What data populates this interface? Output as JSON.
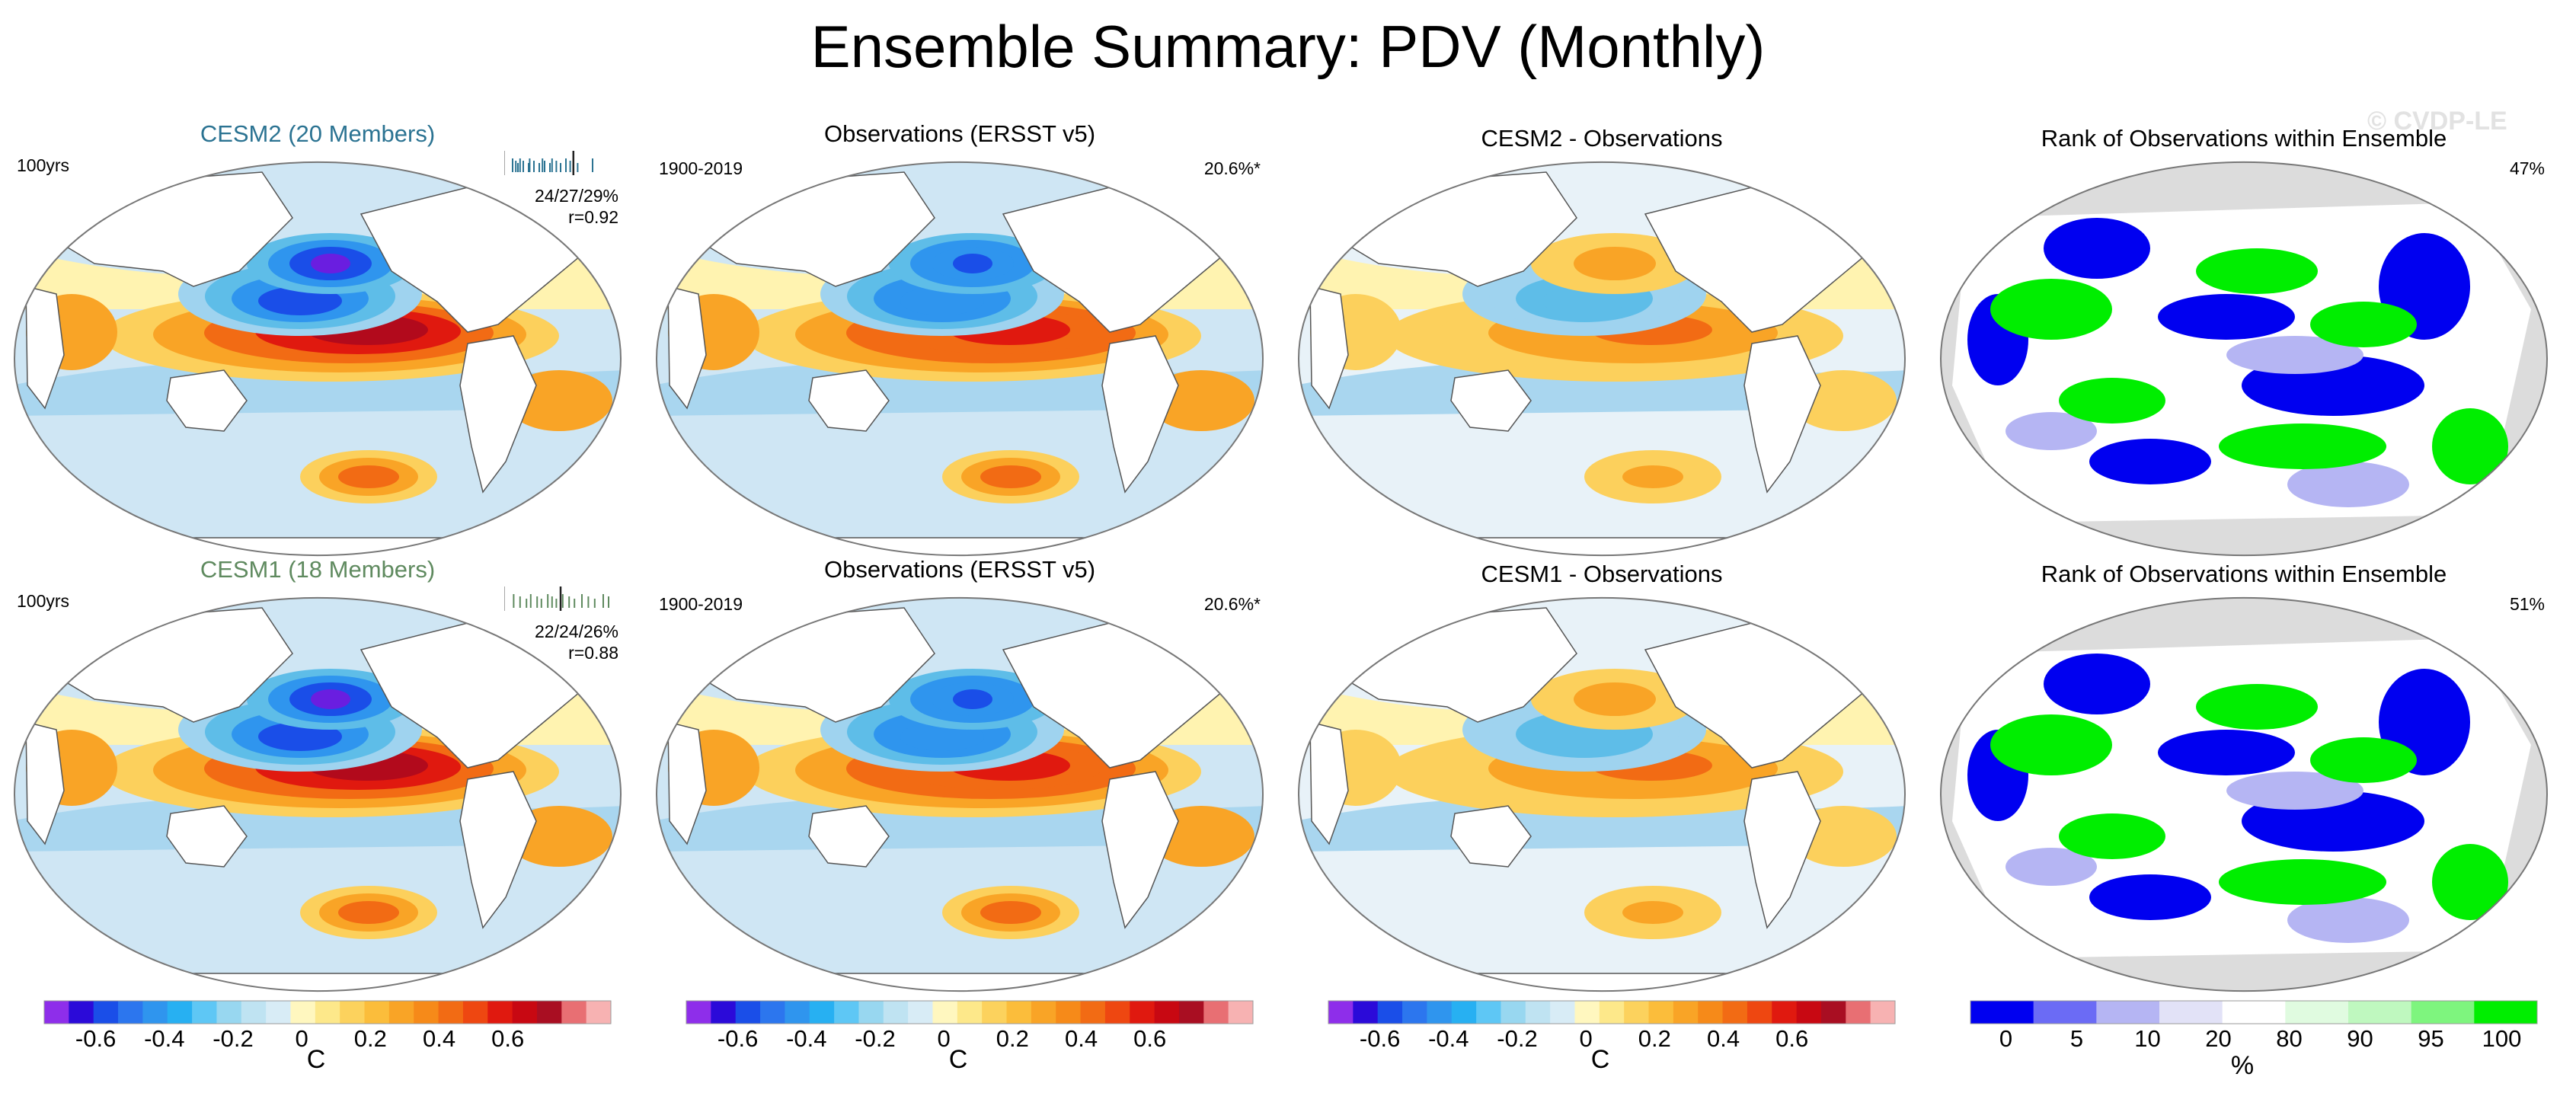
{
  "page": {
    "title": "Ensemble Summary: PDV (Monthly)",
    "watermark": "© CVDP-LE"
  },
  "rows": [
    {
      "model": {
        "title": "CESM2 (20 Members)",
        "title_color": "#2b7392",
        "period": "100yrs",
        "pct": "24/27/29%",
        "r": "r=0.92",
        "ticks": [
          0.05,
          0.08,
          0.1,
          0.12,
          0.15,
          0.2,
          0.21,
          0.25,
          0.3,
          0.33,
          0.35,
          0.4,
          0.42,
          0.46,
          0.5,
          0.55,
          0.59,
          0.66,
          0.8
        ],
        "obs_tick": 0.62
      },
      "obs": {
        "title": "Observations (ERSST v5)",
        "period": "1900-2019",
        "pct": "20.6%*"
      },
      "diff": {
        "title": "CESM2 - Observations"
      },
      "rank": {
        "title": "Rank of Observations within Ensemble",
        "pct": "47%"
      }
    },
    {
      "model": {
        "title": "CESM1 (18 Members)",
        "title_color": "#5f8a5f",
        "period": "100yrs",
        "pct": "22/24/26%",
        "r": "r=0.88",
        "ticks": [
          0.06,
          0.12,
          0.18,
          0.22,
          0.28,
          0.32,
          0.38,
          0.42,
          0.46,
          0.52,
          0.58,
          0.63,
          0.7,
          0.76,
          0.82,
          0.9,
          0.95
        ],
        "obs_tick": 0.5
      },
      "obs": {
        "title": "Observations (ERSST v5)",
        "period": "1900-2019",
        "pct": "20.6%*"
      },
      "diff": {
        "title": "CESM1 - Observations"
      },
      "rank": {
        "title": "Rank of Observations within Ensemble",
        "pct": "51%"
      }
    }
  ],
  "colorbars": {
    "temperature": {
      "colors": [
        "#8e2eea",
        "#2b0ad9",
        "#1a4ee8",
        "#2c76ee",
        "#2f95ee",
        "#27b0f2",
        "#5ec7f5",
        "#98d7f0",
        "#bfe3f2",
        "#d8ecf6",
        "#fff7bf",
        "#fde88a",
        "#fcd25d",
        "#fbbd3b",
        "#f9a426",
        "#f68a19",
        "#f26b14",
        "#ee4711",
        "#e0190f",
        "#c80812",
        "#a90e22",
        "#e86f73",
        "#f7b2b2"
      ],
      "ticks": [
        -0.6,
        -0.4,
        -0.2,
        0,
        0.2,
        0.4,
        0.6
      ],
      "tick_labels": [
        "-0.6",
        "-0.4",
        "-0.2",
        "0",
        "0.2",
        "0.4",
        "0.6"
      ],
      "unit": "C"
    },
    "rank": {
      "colors": [
        "#0000f0",
        "#6b6bf5",
        "#b5b5f3",
        "#e2e2f7",
        "#ffffff",
        "#e0fbe0",
        "#bff8bf",
        "#7ef57e",
        "#00ee00"
      ],
      "tick_labels": [
        "0",
        "5",
        "10",
        "20",
        "80",
        "90",
        "95",
        "100"
      ],
      "unit": "%"
    }
  }
}
